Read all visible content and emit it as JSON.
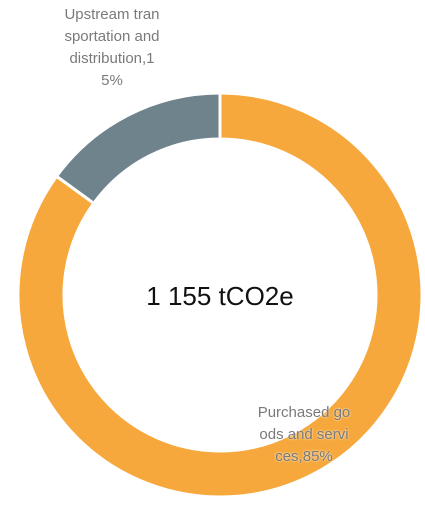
{
  "chart_data": {
    "type": "donut",
    "center_text": "1 155 tCO2e",
    "categories": [
      "Purchased goods and services",
      "Upstream transportation and distribution"
    ],
    "labels": [
      "Purchased goods and services,85%",
      "Upstream transportation and distribution,15%"
    ],
    "values": [
      85,
      15
    ],
    "colors": [
      "#f6a83c",
      "#6f838d"
    ]
  }
}
